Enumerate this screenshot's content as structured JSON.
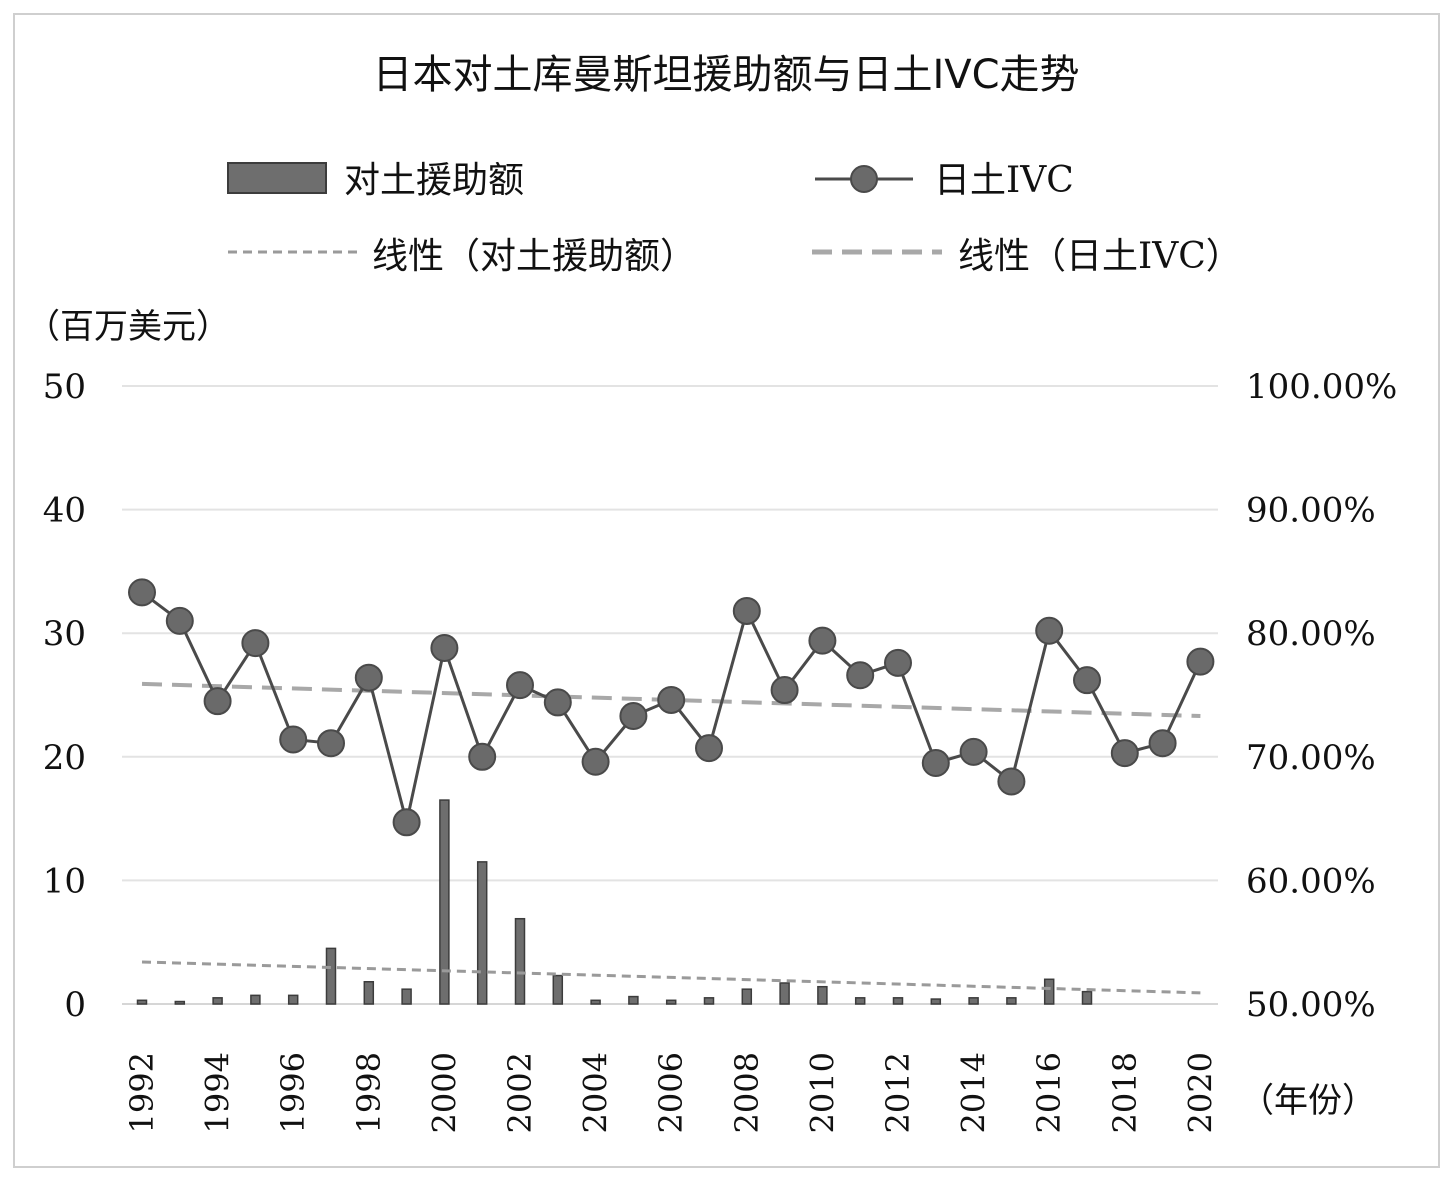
{
  "chart_data": {
    "type": "bar",
    "title": "日本对土库曼斯坦援助额与日土IVC走势",
    "y_unit_label": "（百万美元）",
    "x_unit_label": "（年份）",
    "ylim": [
      0,
      50
    ],
    "y_ticks": [
      "0",
      "10",
      "20",
      "30",
      "40",
      "50"
    ],
    "y2lim": [
      50,
      100
    ],
    "y2_ticks": [
      "50.00%",
      "60.00%",
      "70.00%",
      "80.00%",
      "90.00%",
      "100.00%"
    ],
    "x_tick_labels": [
      "1992",
      "1994",
      "1996",
      "1998",
      "2000",
      "2002",
      "2004",
      "2006",
      "2008",
      "2010",
      "2012",
      "2014",
      "2016",
      "2018",
      "2020"
    ],
    "years": [
      1992,
      1993,
      1994,
      1995,
      1996,
      1997,
      1998,
      1999,
      2000,
      2001,
      2002,
      2003,
      2004,
      2005,
      2006,
      2007,
      2008,
      2009,
      2010,
      2011,
      2012,
      2013,
      2014,
      2015,
      2016,
      2017,
      2018,
      2019,
      2020
    ],
    "grid": true,
    "legend_position": "top",
    "legend": {
      "bar": "对土援助额",
      "line": "日土IVC",
      "trend_bar": "线性（对土援助额）",
      "trend_line": "线性（日土IVC）"
    },
    "series": [
      {
        "name": "对土援助额",
        "type": "bar",
        "axis": "left",
        "values": [
          0.3,
          0.2,
          0.5,
          0.7,
          0.7,
          4.5,
          1.8,
          1.2,
          16.5,
          11.5,
          6.9,
          2.3,
          0.3,
          0.6,
          0.3,
          0.5,
          1.2,
          1.7,
          1.4,
          0.5,
          0.5,
          0.4,
          0.5,
          0.5,
          2.0,
          1.0,
          0,
          0,
          0
        ]
      },
      {
        "name": "日土IVC",
        "type": "line",
        "axis": "right",
        "values": [
          83.3,
          81.0,
          74.5,
          79.2,
          71.4,
          71.1,
          76.4,
          64.7,
          78.8,
          70.0,
          75.8,
          74.4,
          69.6,
          73.3,
          74.6,
          70.7,
          81.8,
          75.4,
          79.4,
          76.6,
          77.6,
          69.5,
          70.4,
          68.0,
          80.2,
          76.2,
          70.3,
          71.1,
          77.7
        ]
      }
    ],
    "trend_bar": {
      "start": 3.4,
      "end": 0.9
    },
    "trend_line": {
      "start": 75.9,
      "end": 73.3
    },
    "colors": {
      "bar": "#6e6e6e",
      "bar_edge": "#3c3c3c",
      "line": "#4a4a4a",
      "marker": "#6a6a6a",
      "trend_bar": "#9a9a9a",
      "trend_line": "#a8a8a8",
      "grid": "#e3e3e3",
      "frame": "#cfcfcf"
    }
  }
}
